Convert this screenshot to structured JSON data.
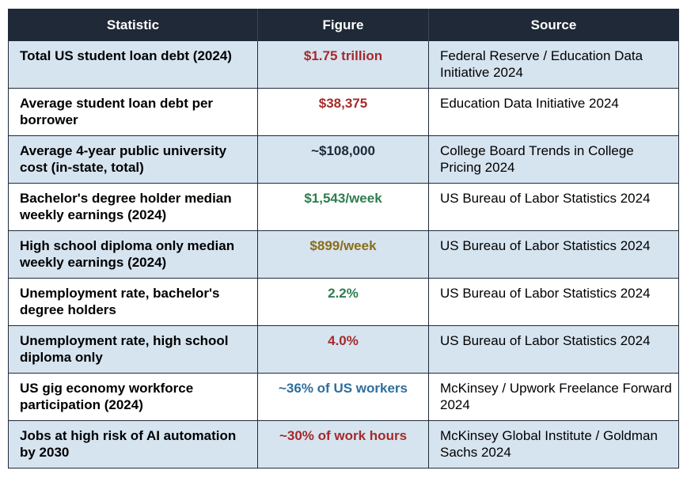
{
  "table": {
    "headers": [
      "Statistic",
      "Figure",
      "Source"
    ],
    "rows": [
      {
        "statistic": "Total US student loan debt (2024)",
        "figure": "$1.75 trillion",
        "figure_color": "#a52a2a",
        "source": "Federal Reserve / Education Data Initiative 2024"
      },
      {
        "statistic": "Average student loan debt per borrower",
        "figure": "$38,375",
        "figure_color": "#a52a2a",
        "source": "Education Data Initiative 2024"
      },
      {
        "statistic": "Average 4-year public university cost (in-state, total)",
        "figure": "~$108,000",
        "figure_color": "#1f2937",
        "source": "College Board Trends in College Pricing 2024"
      },
      {
        "statistic": "Bachelor's degree holder median weekly earnings (2024)",
        "figure": "$1,543/week",
        "figure_color": "#2e7d4f",
        "source": "US Bureau of Labor Statistics 2024"
      },
      {
        "statistic": "High school diploma only median weekly earnings (2024)",
        "figure": "$899/week",
        "figure_color": "#8a6d1a",
        "source": "US Bureau of Labor Statistics 2024"
      },
      {
        "statistic": "Unemployment rate, bachelor's degree holders",
        "figure": "2.2%",
        "figure_color": "#2e7d4f",
        "source": "US Bureau of Labor Statistics 2024"
      },
      {
        "statistic": "Unemployment rate, high school diploma only",
        "figure": "4.0%",
        "figure_color": "#a52a2a",
        "source": "US Bureau of Labor Statistics 2024"
      },
      {
        "statistic": "US gig economy workforce participation (2024)",
        "figure": "~36% of US workers",
        "figure_color": "#2e6e9e",
        "source": "McKinsey / Upwork Freelance Forward 2024"
      },
      {
        "statistic": "Jobs at high risk of AI automation by 2030",
        "figure": "~30% of work hours",
        "figure_color": "#a52a2a",
        "source": "McKinsey Global Institute / Goldman Sachs 2024"
      }
    ]
  }
}
